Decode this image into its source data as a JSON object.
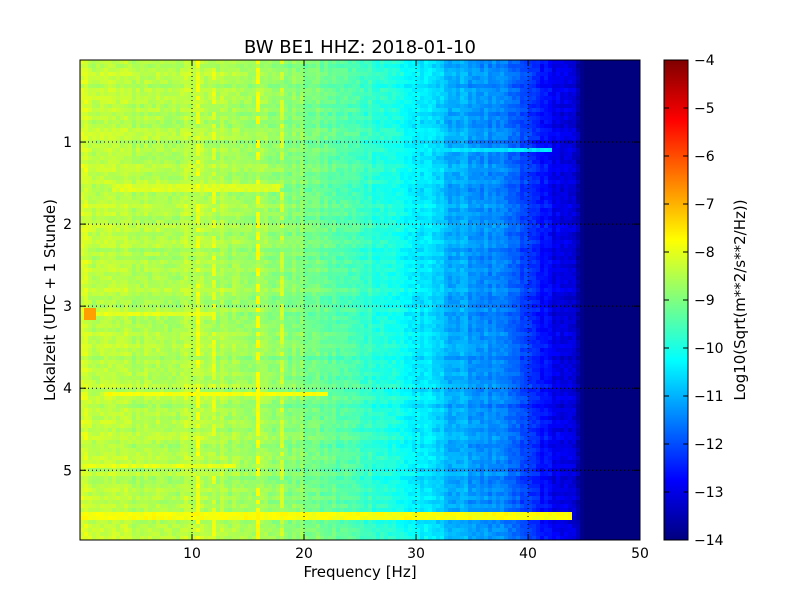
{
  "chart_data": {
    "type": "heatmap",
    "title": "BW BE1 HHZ: 2018-01-10",
    "xlabel": "Frequency [Hz]",
    "ylabel": "Lokalzeit (UTC + 1 Stunde)",
    "xlim": [
      0,
      50
    ],
    "ylim": [
      5.85,
      0
    ],
    "x_ticks": [
      10,
      20,
      30,
      40,
      50
    ],
    "y_ticks": [
      1,
      2,
      3,
      4,
      5
    ],
    "grid": true,
    "colorbar": {
      "label": "Log10(Sqrt(m**2/s**2/Hz))",
      "range": [
        -14,
        -4
      ],
      "ticks": [
        -4,
        -5,
        -6,
        -7,
        -8,
        -9,
        -10,
        -11,
        -12,
        -13,
        -14
      ],
      "tick_labels": [
        "−4",
        "−5",
        "−6",
        "−7",
        "−8",
        "−9",
        "−10",
        "−11",
        "−12",
        "−13",
        "−14"
      ],
      "colormap": "jet",
      "colormap_stops": [
        "#00007f",
        "#0000ff",
        "#007fff",
        "#00ffff",
        "#7fff7f",
        "#ffff00",
        "#ff7f00",
        "#ff0000",
        "#7f0000"
      ]
    },
    "spectral_profile": {
      "frequency_hz": [
        0,
        2,
        5,
        10,
        15,
        20,
        25,
        28,
        30,
        32,
        33,
        35,
        38,
        40,
        42,
        44,
        45,
        50
      ],
      "log10_amplitude": [
        -8.2,
        -8.4,
        -8.5,
        -8.5,
        -8.6,
        -9.0,
        -9.6,
        -10.0,
        -10.4,
        -10.7,
        -11.0,
        -11.2,
        -11.6,
        -12.2,
        -12.8,
        -13.2,
        -14.0,
        -14.0
      ]
    },
    "features": [
      {
        "type": "horizontal-band",
        "time": 4.08,
        "f_range": [
          2,
          22
        ],
        "log10_amplitude": -7.8
      },
      {
        "type": "horizontal-band",
        "time": 5.55,
        "f_range": [
          0,
          44
        ],
        "log10_amplitude": -7.8
      },
      {
        "type": "horizontal-band",
        "time": 4.95,
        "f_range": [
          0,
          14
        ],
        "log10_amplitude": -8.0
      },
      {
        "type": "horizontal-band",
        "time": 3.1,
        "f_range": [
          0,
          12
        ],
        "log10_amplitude": -8.0
      },
      {
        "type": "horizontal-band",
        "time": 1.55,
        "f_range": [
          3,
          18
        ],
        "log10_amplitude": -8.1
      },
      {
        "type": "horizontal-band",
        "time": 1.1,
        "f_range": [
          30,
          42
        ],
        "log10_amplitude": -10.5
      },
      {
        "type": "hotspot",
        "time": 3.1,
        "f_range": [
          0.3,
          1.5
        ],
        "log10_amplitude": -6.8
      },
      {
        "type": "vertical-line",
        "frequency_hz": 10.5,
        "log10_amplitude": -7.9
      },
      {
        "type": "vertical-line",
        "frequency_hz": 12.0,
        "log10_amplitude": -8.0
      },
      {
        "type": "vertical-line",
        "frequency_hz": 15.8,
        "log10_amplitude": -7.8
      },
      {
        "type": "vertical-line",
        "frequency_hz": 18.0,
        "log10_amplitude": -8.2
      }
    ]
  }
}
